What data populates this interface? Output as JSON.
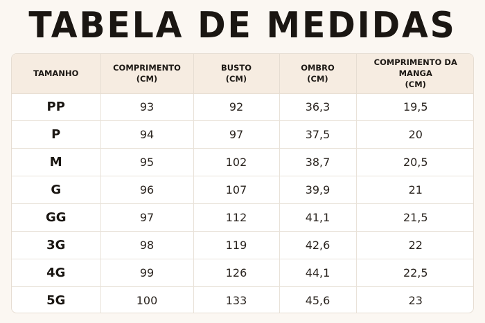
{
  "title": "TABELA DE MEDIDAS",
  "table": {
    "headers": [
      {
        "label": "TAMANHO",
        "unit": ""
      },
      {
        "label": "COMPRIMENTO",
        "unit": "(CM)"
      },
      {
        "label": "BUSTO",
        "unit": "(CM)"
      },
      {
        "label": "OMBRO",
        "unit": "(CM)"
      },
      {
        "label": "COMPRIMENTO DA MANGA",
        "unit": "(CM)"
      }
    ],
    "rows": [
      [
        "PP",
        "93",
        "92",
        "36,3",
        "19,5"
      ],
      [
        "P",
        "94",
        "97",
        "37,5",
        "20"
      ],
      [
        "M",
        "95",
        "102",
        "38,7",
        "20,5"
      ],
      [
        "G",
        "96",
        "107",
        "39,9",
        "21"
      ],
      [
        "GG",
        "97",
        "112",
        "41,1",
        "21,5"
      ],
      [
        "3G",
        "98",
        "119",
        "42,6",
        "22"
      ],
      [
        "4G",
        "99",
        "126",
        "44,1",
        "22,5"
      ],
      [
        "5G",
        "100",
        "133",
        "45,6",
        "23"
      ]
    ]
  },
  "colors": {
    "background": "#fbf7f2",
    "header_background": "#f6ece1",
    "border": "#e6ddd2",
    "text": "#1c1814"
  }
}
